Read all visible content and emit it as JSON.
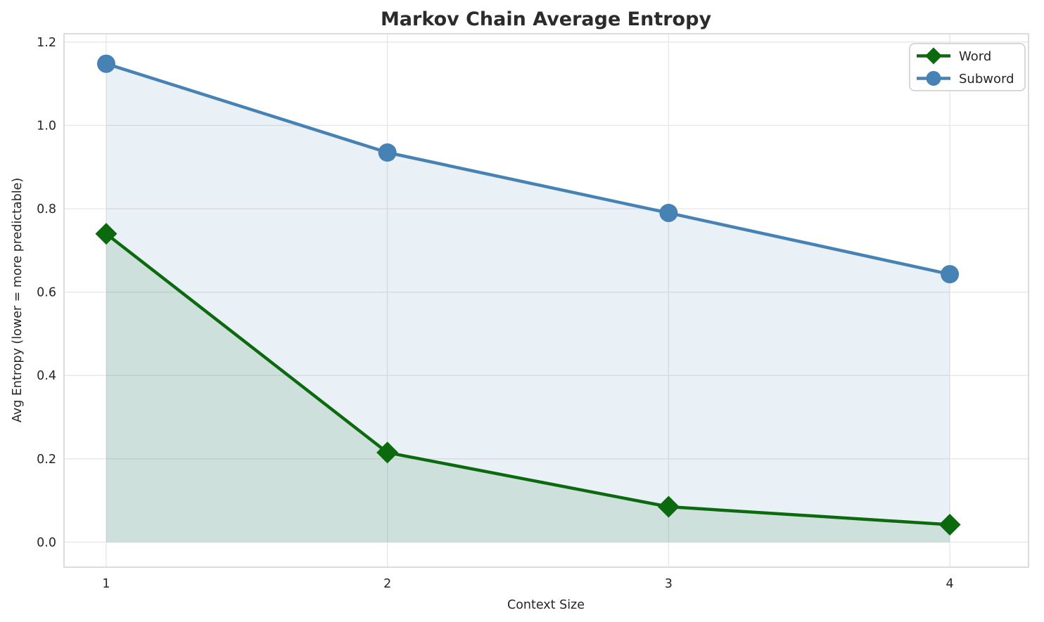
{
  "figure": {
    "background_color": "#ffffff",
    "text_color": "#262626",
    "grid_color": "#e7e7e7",
    "spine_color": "#d4d4d4",
    "legend_border_color": "#cccccc",
    "legend_background_color": "#ffffff"
  },
  "chart_data": {
    "type": "line",
    "title": "Markov Chain Average Entropy",
    "xlabel": "Context Size",
    "ylabel": "Avg Entropy (lower = more predictable)",
    "x": [
      1,
      2,
      3,
      4
    ],
    "series": [
      {
        "name": "Word",
        "values": [
          0.74,
          0.215,
          0.085,
          0.042
        ],
        "color": "#0b6a0e",
        "marker": "diamond",
        "fill_to_zero": true,
        "fill_alpha": 0.12
      },
      {
        "name": "Subword",
        "values": [
          1.148,
          0.935,
          0.79,
          0.643
        ],
        "color": "#4682b4",
        "marker": "circle",
        "fill_to_zero": true,
        "fill_alpha": 0.12
      }
    ],
    "xlim": [
      0.85,
      4.28
    ],
    "ylim": [
      -0.06,
      1.22
    ],
    "xticks": [
      "1",
      "2",
      "3",
      "4"
    ],
    "xtick_values": [
      1,
      2,
      3,
      4
    ],
    "yticks": [
      "0.0",
      "0.2",
      "0.4",
      "0.6",
      "0.8",
      "1.0",
      "1.2"
    ],
    "ytick_values": [
      0,
      0.2,
      0.4,
      0.6,
      0.8,
      1.0,
      1.2
    ],
    "grid": true,
    "legend": {
      "position": "upper right",
      "entries": [
        "Word",
        "Subword"
      ]
    }
  }
}
